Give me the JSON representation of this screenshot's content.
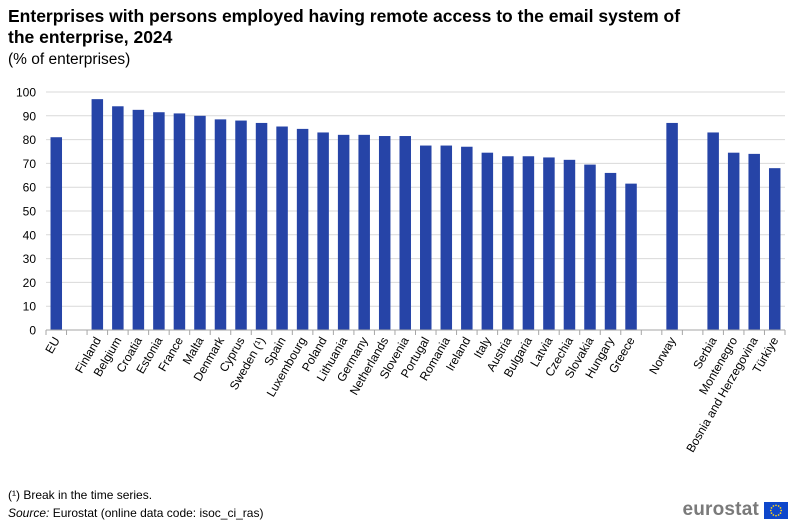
{
  "title": "Enterprises with persons employed having remote access to the email system of the enterprise, 2024",
  "subtitle": "(% of enterprises)",
  "footnote": "(¹) Break in the time series.",
  "source": {
    "label": "Source:",
    "text": " Eurostat (online data code: isoc_ci_ras)"
  },
  "logo": {
    "text": "eurostat",
    "flag_color": "#0e47cb",
    "star_color": "#ffd617"
  },
  "colors": {
    "bar": "#2644a7",
    "grid": "#d9d9d9",
    "axis": "#a6a6a6"
  },
  "chart_data": {
    "type": "bar",
    "title": "Enterprises with persons employed having remote access to the email system of the enterprise, 2024",
    "ylabel": "% of enterprises",
    "xlabel": "",
    "ylim": [
      0,
      100
    ],
    "yticks": [
      0,
      10,
      20,
      30,
      40,
      50,
      60,
      70,
      80,
      90,
      100
    ],
    "grid": true,
    "categories": [
      "EU",
      "",
      "Finland",
      "Belgium",
      "Croatia",
      "Estonia",
      "France",
      "Malta",
      "Denmark",
      "Cyprus",
      "Sweden (¹)",
      "Spain",
      "Luxembourg",
      "Poland",
      "Lithuania",
      "Germany",
      "Netherlands",
      "Slovenia",
      "Portugal",
      "Romania",
      "Ireland",
      "Italy",
      "Austria",
      "Bulgaria",
      "Latvia",
      "Czechia",
      "Slovakia",
      "Hungary",
      "Greece",
      "",
      "Norway",
      "",
      "Serbia",
      "Montenegro",
      "Bosnia and Herzegovina",
      "Türkiye"
    ],
    "values": [
      81,
      null,
      97,
      94,
      92.5,
      91.5,
      91,
      90,
      88.5,
      88,
      87,
      85.5,
      84.5,
      83,
      82,
      82,
      81.5,
      81.5,
      77.5,
      77.5,
      77,
      74.5,
      73,
      73,
      72.5,
      71.5,
      69.5,
      66,
      61.5,
      null,
      87,
      null,
      83,
      74.5,
      74,
      68
    ]
  }
}
